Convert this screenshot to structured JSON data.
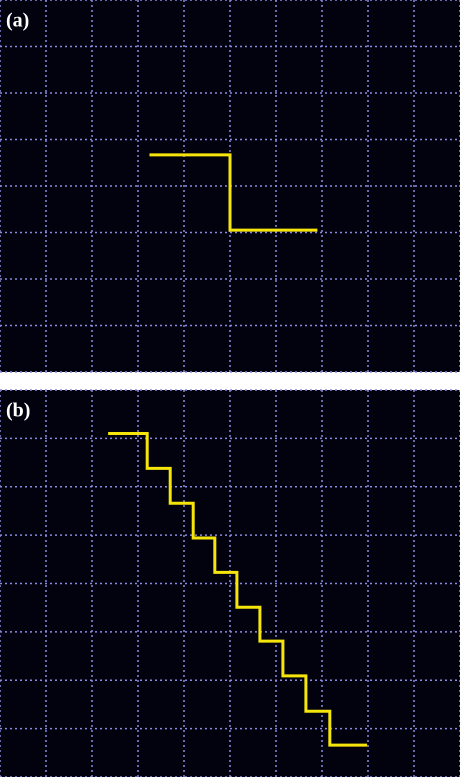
{
  "chart_data": [
    {
      "type": "line",
      "title": "(a)",
      "xlim": [
        0,
        10
      ],
      "ylim": [
        0,
        8
      ],
      "xticks": [
        0,
        1,
        2,
        3,
        4,
        5,
        6,
        7,
        8,
        9,
        10
      ],
      "yticks": [
        0,
        1,
        2,
        3,
        4,
        5,
        6,
        7,
        8
      ],
      "grid": true,
      "series": [
        {
          "color": "#f5e50a",
          "x": [
            3.25,
            5,
            5,
            6.9
          ],
          "values": [
            4.67,
            4.67,
            3.05,
            3.05
          ]
        }
      ]
    },
    {
      "type": "line",
      "title": "(b)",
      "xlim": [
        0,
        10
      ],
      "ylim": [
        0,
        8
      ],
      "xticks": [
        0,
        1,
        2,
        3,
        4,
        5,
        6,
        7,
        8,
        9,
        10
      ],
      "yticks": [
        0,
        1,
        2,
        3,
        4,
        5,
        6,
        7,
        8
      ],
      "grid": true,
      "series": [
        {
          "color": "#f5e50a",
          "x": [
            2.35,
            3.2,
            3.2,
            3.7,
            3.7,
            4.2,
            4.2,
            4.67,
            4.67,
            5.15,
            5.15,
            5.65,
            5.65,
            6.15,
            6.15,
            6.65,
            6.65,
            7.17,
            7.17,
            7.98
          ],
          "values": [
            7.1,
            7.1,
            6.38,
            6.38,
            5.66,
            5.66,
            4.94,
            4.94,
            4.23,
            4.23,
            3.51,
            3.51,
            2.81,
            2.81,
            2.09,
            2.09,
            1.36,
            1.36,
            0.66,
            0.66
          ]
        }
      ]
    }
  ]
}
